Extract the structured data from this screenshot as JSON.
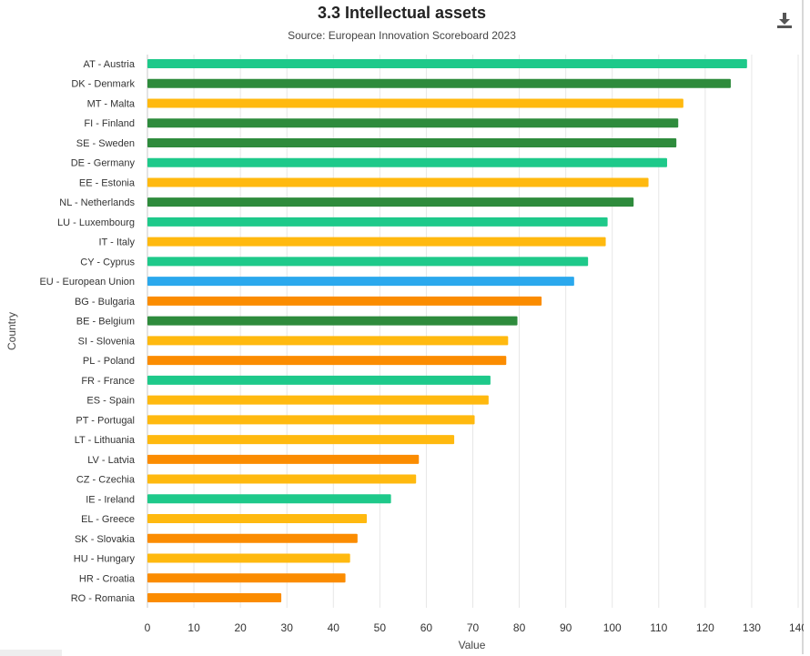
{
  "chart_data": {
    "type": "bar",
    "orientation": "horizontal",
    "title": "3.3 Intellectual assets",
    "subtitle": "Source: European Innovation Scoreboard 2023",
    "xlabel": "Value",
    "ylabel": "Country",
    "xlim": [
      0,
      140
    ],
    "xticks": [
      "0",
      "10",
      "20",
      "30",
      "40",
      "50",
      "60",
      "70",
      "80",
      "90",
      "100",
      "110",
      "120",
      "130",
      "140"
    ],
    "grid": true,
    "legend": "none",
    "categories": [
      "AT - Austria",
      "DK - Denmark",
      "MT - Malta",
      "FI - Finland",
      "SE - Sweden",
      "DE - Germany",
      "EE - Estonia",
      "NL - Netherlands",
      "LU - Luxembourg",
      "IT - Italy",
      "CY - Cyprus",
      "EU - European Union",
      "BG - Bulgaria",
      "BE - Belgium",
      "SI - Slovenia",
      "PL - Poland",
      "FR - France",
      "ES - Spain",
      "PT - Portugal",
      "LT - Lithuania",
      "LV - Latvia",
      "CZ - Czechia",
      "IE - Ireland",
      "EL - Greece",
      "SK - Slovakia",
      "HU - Hungary",
      "HR - Croatia",
      "RO - Romania"
    ],
    "values": [
      129,
      125.5,
      115.3,
      114.2,
      113.8,
      111.8,
      107.8,
      104.6,
      99,
      98.6,
      94.8,
      91.8,
      84.8,
      79.6,
      77.6,
      77.2,
      73.8,
      73.4,
      70.4,
      66,
      58.4,
      57.8,
      52.4,
      47.2,
      45.2,
      43.6,
      42.6,
      28.8
    ],
    "colors": [
      "#1ec98a",
      "#2e8b3c",
      "#ffb90f",
      "#2e8b3c",
      "#2e8b3c",
      "#1ec98a",
      "#ffb90f",
      "#2e8b3c",
      "#1ec98a",
      "#ffb90f",
      "#1ec98a",
      "#2aa8ed",
      "#fb8c00",
      "#2e8b3c",
      "#ffb90f",
      "#fb8c00",
      "#1ec98a",
      "#ffb90f",
      "#ffb90f",
      "#ffb90f",
      "#fb8c00",
      "#ffb90f",
      "#1ec98a",
      "#ffb90f",
      "#fb8c00",
      "#ffb90f",
      "#fb8c00",
      "#fb8c00"
    ]
  },
  "toolbar": {
    "download_icon": "download-icon"
  }
}
